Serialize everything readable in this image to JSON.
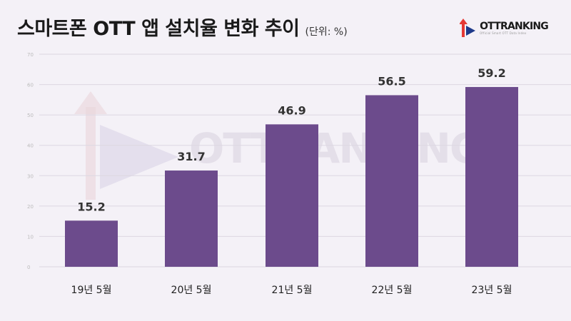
{
  "header": {
    "title": "스마트폰 OTT 앱 설치율 변화 추이",
    "unit": "(단위: %)"
  },
  "logo": {
    "name_ott": "OTT",
    "name_ranking": "RANKING",
    "tagline": "Official Smart OTT Data Index"
  },
  "watermark": {
    "text": "OTTRANKING"
  },
  "colors": {
    "bar": "#6c4b8c",
    "grid": "#dcd7e2",
    "logo_red": "#e53935",
    "logo_blue": "#1e3a8a"
  },
  "chart_data": {
    "type": "bar",
    "categories": [
      "19년 5월",
      "20년 5월",
      "21년 5월",
      "22년 5월",
      "23년 5월"
    ],
    "values": [
      15.2,
      31.7,
      46.9,
      56.5,
      59.2
    ],
    "title": "스마트폰 OTT 앱 설치율 변화 추이",
    "unit": "(단위: %)",
    "ylim": [
      0,
      70
    ],
    "yticks": [
      0,
      10,
      20,
      30,
      40,
      50,
      60,
      70
    ],
    "grid": true,
    "data_labels": true
  }
}
